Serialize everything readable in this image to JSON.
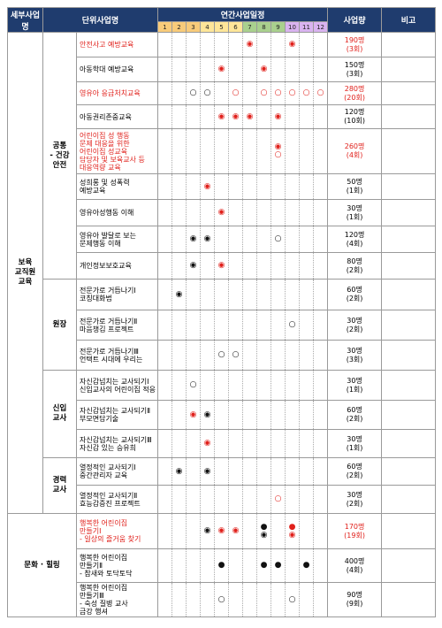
{
  "header": {
    "detail": "세부사업명",
    "unit": "단위사업명",
    "schedule": "연간사업일정",
    "months": [
      1,
      2,
      3,
      4,
      5,
      6,
      7,
      8,
      9,
      10,
      11,
      12
    ],
    "amount": "사업량",
    "note": "비고"
  },
  "groups": [
    {
      "name": "보육\n교직원\n교육",
      "subgroups": [
        {
          "name": "공통\n- 건강\n안전",
          "rows": [
            {
              "name": "안전사고 예방교육",
              "schedule": [
                {
                  "month": 7,
                  "symbol": "◉",
                  "color": "#e0201b"
                },
                {
                  "month": 10,
                  "symbol": "◉",
                  "color": "#e0201b"
                }
              ],
              "amount": "190명",
              "sessions": "(3회)",
              "color": "#e0201b"
            },
            {
              "name": "아동학대 예방교육",
              "schedule": [
                {
                  "month": 5,
                  "symbol": "◉",
                  "color": "#e0201b"
                },
                {
                  "month": 8,
                  "symbol": "◉",
                  "color": "#e0201b"
                }
              ],
              "amount": "150명",
              "sessions": "(3회)"
            },
            {
              "name": "영유아 응급처치교육",
              "schedule": [
                {
                  "month": 3,
                  "symbol": "○"
                },
                {
                  "month": 4,
                  "symbol": "○"
                },
                {
                  "month": 6,
                  "symbol": "○",
                  "color": "#e0201b"
                },
                {
                  "month": 8,
                  "symbol": "○",
                  "color": "#e0201b"
                },
                {
                  "month": 9,
                  "symbol": "○",
                  "color": "#e0201b"
                },
                {
                  "month": 10,
                  "symbol": "○",
                  "color": "#e0201b"
                },
                {
                  "month": 11,
                  "symbol": "○",
                  "color": "#e0201b"
                },
                {
                  "month": 12,
                  "symbol": "○",
                  "color": "#e0201b"
                }
              ],
              "amount": "280명",
              "sessions": "(20회)",
              "color": "#e0201b"
            },
            {
              "name": "아동권리존중교육",
              "schedule": [
                {
                  "month": 5,
                  "symbol": "◉",
                  "color": "#e0201b"
                },
                {
                  "month": 6,
                  "symbol": "◉",
                  "color": "#e0201b"
                },
                {
                  "month": 7,
                  "symbol": "◉",
                  "color": "#e0201b"
                },
                {
                  "month": 9,
                  "symbol": "◉",
                  "color": "#e0201b"
                }
              ],
              "amount": "120명",
              "sessions": "(10회)"
            },
            {
              "name": "어린이집 성 행동\n문제 대응을 위한\n어린이집 성교육\n담당자 및 보육교사 등\n대응역량 교육",
              "schedule": [
                {
                  "month": 9,
                  "symbol": "◉\n○",
                  "color": "#e0201b"
                }
              ],
              "amount": "260명",
              "sessions": "(4회)",
              "color": "#e0201b"
            },
            {
              "name": "성희롱 및 성폭력\n예방교육",
              "schedule": [
                {
                  "month": 4,
                  "symbol": "◉",
                  "color": "#e0201b"
                }
              ],
              "amount": "50명",
              "sessions": "(1회)"
            },
            {
              "name": "영유아성행동 이해",
              "schedule": [
                {
                  "month": 5,
                  "symbol": "◉",
                  "color": "#e0201b"
                }
              ],
              "amount": "30명",
              "sessions": "(1회)"
            },
            {
              "name": "영유아 발달로 보는\n문제행동 이해",
              "schedule": [
                {
                  "month": 3,
                  "symbol": "◉"
                },
                {
                  "month": 4,
                  "symbol": "◉"
                },
                {
                  "month": 9,
                  "symbol": "○"
                }
              ],
              "amount": "120명",
              "sessions": "(4회)"
            },
            {
              "name": "개인정보보호교육",
              "schedule": [
                {
                  "month": 3,
                  "symbol": "◉"
                },
                {
                  "month": 5,
                  "symbol": "◉",
                  "color": "#e0201b"
                }
              ],
              "amount": "80명",
              "sessions": "(2회)"
            }
          ]
        },
        {
          "name": "원장",
          "rows": [
            {
              "name": "전문가로 거듭나기Ⅰ\n코칭대화법",
              "schedule": [
                {
                  "month": 2,
                  "symbol": "◉"
                }
              ],
              "amount": "60명",
              "sessions": "(2회)"
            },
            {
              "name": "전문가로 거듭나기Ⅱ\n마음챙김 프로젝트",
              "schedule": [
                {
                  "month": 10,
                  "symbol": "○"
                }
              ],
              "amount": "30명",
              "sessions": "(2회)"
            },
            {
              "name": "전문가로 거듭나기Ⅲ\n언택트 시대에 우리는",
              "schedule": [
                {
                  "month": 5,
                  "symbol": "○"
                },
                {
                  "month": 6,
                  "symbol": "○"
                }
              ],
              "amount": "30명",
              "sessions": "(3회)"
            }
          ]
        },
        {
          "name": "신입\n교사",
          "rows": [
            {
              "name": "자신감넘치는 교사되기Ⅰ\n신입교사의 어린이집 적응",
              "schedule": [
                {
                  "month": 3,
                  "symbol": "○"
                }
              ],
              "amount": "30명",
              "sessions": "(1회)"
            },
            {
              "name": "자신감넘치는 교사되기Ⅱ\n부모면담기술",
              "schedule": [
                {
                  "month": 3,
                  "symbol": "◉",
                  "color": "#e0201b"
                },
                {
                  "month": 4,
                  "symbol": "◉"
                }
              ],
              "amount": "60명",
              "sessions": "(2회)"
            },
            {
              "name": "자신감넘치는 교사되기Ⅲ\n자신감 있는 승유희",
              "schedule": [
                {
                  "month": 4,
                  "symbol": "◉",
                  "color": "#e0201b"
                }
              ],
              "amount": "30명",
              "sessions": "(1회)"
            }
          ]
        },
        {
          "name": "경력\n교사",
          "rows": [
            {
              "name": "열정적인 교사되기Ⅰ\n중간관리자 교육",
              "schedule": [
                {
                  "month": 2,
                  "symbol": "◉"
                },
                {
                  "month": 4,
                  "symbol": "◉"
                }
              ],
              "amount": "60명",
              "sessions": "(2회)"
            },
            {
              "name": "열정적인 교사되기Ⅱ\n효능감증진 프로젝트",
              "schedule": [
                {
                  "month": 9,
                  "symbol": "○",
                  "color": "#e0201b"
                }
              ],
              "amount": "30명",
              "sessions": "(2회)"
            }
          ]
        }
      ]
    },
    {
      "name": "문화 · 힐링",
      "rows": [
        {
          "name": "행복한 어린이집\n만들기Ⅰ\n- 일상의 즐거움 찾기",
          "schedule": [
            {
              "month": 4,
              "symbol": "◉"
            },
            {
              "month": 5,
              "symbol": "◉",
              "color": "#e0201b"
            },
            {
              "month": 6,
              "symbol": "◉",
              "color": "#e0201b"
            },
            {
              "month": 8,
              "symbol": "●\n◉"
            },
            {
              "month": 10,
              "symbol": "●\n◉",
              "color": "#e0201b"
            }
          ],
          "amount": "170명",
          "sessions": "(19회)",
          "color": "#e0201b"
        },
        {
          "name": "행복한 어린이집\n만들기Ⅱ\n- 참새와 토닥토닥",
          "schedule": [
            {
              "month": 5,
              "symbol": "●"
            },
            {
              "month": 8,
              "symbol": "●"
            },
            {
              "month": 9,
              "symbol": "●"
            },
            {
              "month": 11,
              "symbol": "●"
            }
          ],
          "amount": "400명",
          "sessions": "(4회)"
        },
        {
          "name": "행복한 어린이집\n만들기Ⅲ\n- 숙성 질병 교사\n금강 행셔",
          "schedule": [
            {
              "month": 5,
              "symbol": "○"
            },
            {
              "month": 10,
              "symbol": "○"
            }
          ],
          "amount": "90명",
          "sessions": "(9회)"
        }
      ]
    }
  ]
}
